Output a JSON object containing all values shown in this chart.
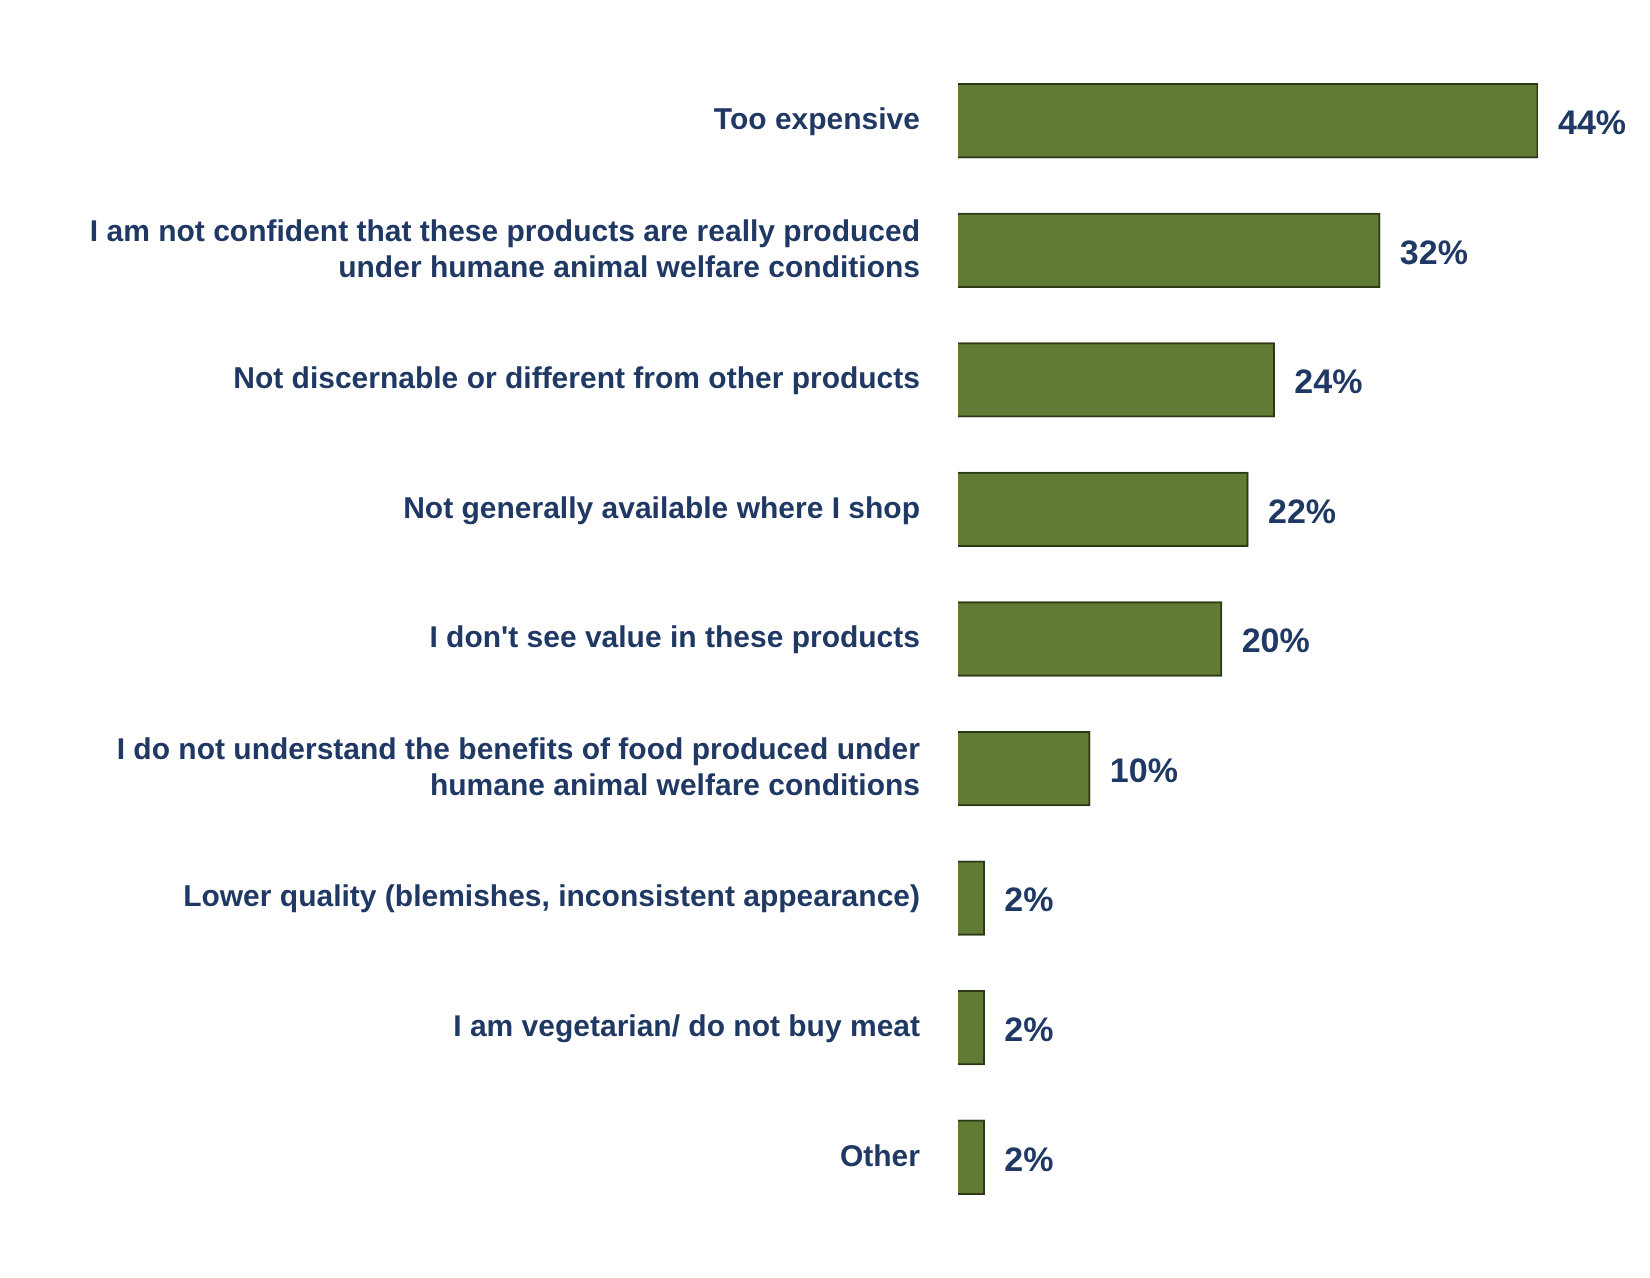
{
  "chart_data": {
    "type": "bar",
    "orientation": "horizontal",
    "categories": [
      "Too expensive",
      "I am not confident that these products are really produced under humane animal welfare conditions",
      "Not discernable or different from other products",
      "Not generally available where I shop",
      "I don't see value in these products",
      "I do not understand the benefits of food produced under humane animal welfare conditions",
      "Lower quality (blemishes, inconsistent appearance)",
      "I am vegetarian/ do not buy meat",
      "Other"
    ],
    "values": [
      44,
      32,
      24,
      22,
      20,
      10,
      2,
      2,
      2
    ],
    "value_labels": [
      "44%",
      "32%",
      "24%",
      "22%",
      "20%",
      "10%",
      "2%",
      "2%",
      "2%"
    ],
    "color": "#617a34",
    "legend": false
  }
}
